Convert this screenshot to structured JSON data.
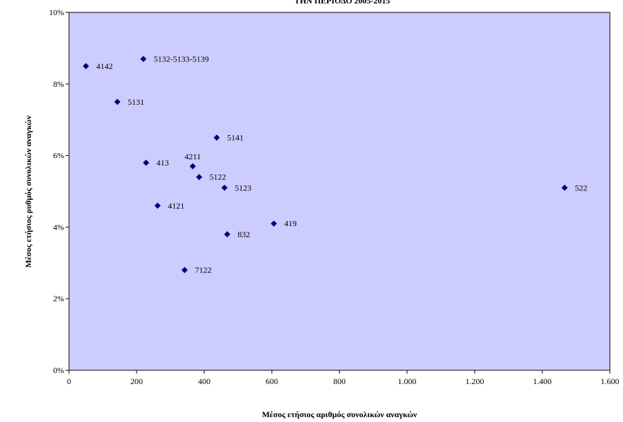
{
  "chart_data": {
    "type": "scatter",
    "title": "ΤΗΝ ΠΕΡΙΟΔΟ 2005-2015",
    "xlabel": "Μέσος ετήσιος αριθμός συνολικών αναγκών",
    "ylabel": "Μέσος ετήσιος ρυθμός συνολικών αναγκών",
    "xlim": [
      0,
      1600
    ],
    "ylim": [
      0,
      0.1
    ],
    "x_ticks": [
      0,
      200,
      400,
      600,
      800,
      1000,
      1200,
      1400,
      1600
    ],
    "x_tick_labels": [
      "0",
      "200",
      "400",
      "600",
      "800",
      "1.000",
      "1.200",
      "1.400",
      "1.600"
    ],
    "y_ticks": [
      0,
      0.02,
      0.04,
      0.06,
      0.08,
      0.1
    ],
    "y_tick_labels": [
      "0%",
      "2%",
      "4%",
      "6%",
      "8%",
      "10%"
    ],
    "grid": false,
    "plot_background": "#ccccff",
    "marker_color": "#000080",
    "points": [
      {
        "label": "4142",
        "x": 50,
        "y": 0.085
      },
      {
        "label": "5132-5133-5139",
        "x": 220,
        "y": 0.087
      },
      {
        "label": "5131",
        "x": 143,
        "y": 0.075
      },
      {
        "label": "5141",
        "x": 437,
        "y": 0.065
      },
      {
        "label": "413",
        "x": 228,
        "y": 0.058
      },
      {
        "label": "4211",
        "x": 366,
        "y": 0.057
      },
      {
        "label": "5122",
        "x": 385,
        "y": 0.054
      },
      {
        "label": "5123",
        "x": 460,
        "y": 0.051
      },
      {
        "label": "522",
        "x": 1466,
        "y": 0.051
      },
      {
        "label": "4121",
        "x": 262,
        "y": 0.046
      },
      {
        "label": "419",
        "x": 606,
        "y": 0.041
      },
      {
        "label": "832",
        "x": 468,
        "y": 0.038
      },
      {
        "label": "7122",
        "x": 342,
        "y": 0.028
      }
    ]
  }
}
